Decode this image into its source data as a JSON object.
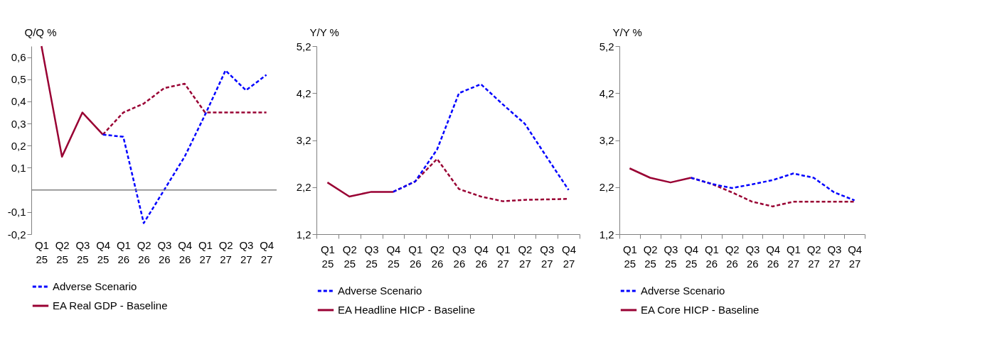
{
  "chart_data": [
    {
      "type": "line",
      "ylabel": "Q/Q %",
      "categories": [
        "Q1 25",
        "Q2 25",
        "Q3 25",
        "Q4 25",
        "Q1 26",
        "Q2 26",
        "Q3 26",
        "Q4 26",
        "Q1 27",
        "Q2 27",
        "Q3 27",
        "Q4 27"
      ],
      "ylim": [
        -0.2,
        0.65
      ],
      "yticks": [
        {
          "value": -0.2,
          "label": "-0,2"
        },
        {
          "value": -0.1,
          "label": "-0,1"
        },
        {
          "value": 0.1,
          "label": "0,1"
        },
        {
          "value": 0.2,
          "label": "0,2"
        },
        {
          "value": 0.3,
          "label": "0,3"
        },
        {
          "value": 0.4,
          "label": "0,4"
        },
        {
          "value": 0.5,
          "label": "0,5"
        },
        {
          "value": 0.6,
          "label": "0,6"
        }
      ],
      "ref_lines": [
        {
          "axis": "y",
          "value": 0,
          "color": "#808080"
        }
      ],
      "legend": "bottom",
      "series": [
        {
          "name": "Adverse Scenario",
          "color": "#0000ff",
          "line_style": "dashed",
          "values": [
            null,
            null,
            null,
            0.25,
            0.24,
            -0.15,
            0.0,
            0.15,
            0.34,
            0.54,
            0.45,
            0.52
          ]
        },
        {
          "name": "EA Real GDP - Baseline",
          "color": "#990033",
          "line_style": "solid",
          "values": [
            0.65,
            0.15,
            0.35,
            0.25,
            null,
            null,
            null,
            null,
            null,
            null,
            null,
            null
          ]
        },
        {
          "color": "#990033",
          "line_style": "dashed",
          "values": [
            null,
            null,
            null,
            0.25,
            0.35,
            0.39,
            0.46,
            0.48,
            0.35,
            0.35,
            0.35,
            0.35
          ]
        }
      ]
    },
    {
      "type": "line",
      "ylabel": "Y/Y %",
      "categories": [
        "Q1 25",
        "Q2 25",
        "Q3 25",
        "Q4 25",
        "Q1 26",
        "Q2 26",
        "Q3 26",
        "Q4 26",
        "Q1 27",
        "Q2 27",
        "Q3 27",
        "Q4 27"
      ],
      "ylim": [
        1.2,
        5.2
      ],
      "yticks": [
        {
          "value": 1.2,
          "label": "1,2"
        },
        {
          "value": 2.2,
          "label": "2,2"
        },
        {
          "value": 3.2,
          "label": "3,2"
        },
        {
          "value": 4.2,
          "label": "4,2"
        },
        {
          "value": 5.2,
          "label": "5,2"
        }
      ],
      "legend": "bottom",
      "series": [
        {
          "name": "Adverse Scenario",
          "color": "#0000ff",
          "line_style": "dashed",
          "values": [
            null,
            null,
            null,
            2.1,
            2.32,
            3.0,
            4.2,
            4.39,
            3.96,
            3.55,
            2.84,
            2.14
          ]
        },
        {
          "name": "EA Headline HICP - Baseline",
          "color": "#990033",
          "line_style": "solid",
          "values": [
            2.3,
            2.0,
            2.1,
            2.1,
            null,
            null,
            null,
            null,
            null,
            null,
            null,
            null
          ]
        },
        {
          "color": "#990033",
          "line_style": "dashed",
          "values": [
            null,
            null,
            null,
            2.1,
            2.32,
            2.8,
            2.16,
            2.0,
            1.9,
            1.93,
            1.94,
            1.95
          ]
        }
      ]
    },
    {
      "type": "line",
      "ylabel": "Y/Y %",
      "categories": [
        "Q1 25",
        "Q2 25",
        "Q3 25",
        "Q4 25",
        "Q1 26",
        "Q2 26",
        "Q3 26",
        "Q4 26",
        "Q1 27",
        "Q2 27",
        "Q3 27",
        "Q4 27"
      ],
      "ylim": [
        1.2,
        5.2
      ],
      "yticks": [
        {
          "value": 1.2,
          "label": "1,2"
        },
        {
          "value": 2.2,
          "label": "2,2"
        },
        {
          "value": 3.2,
          "label": "3,2"
        },
        {
          "value": 4.2,
          "label": "4,2"
        },
        {
          "value": 5.2,
          "label": "5,2"
        }
      ],
      "legend": "bottom",
      "series": [
        {
          "name": "Adverse Scenario",
          "color": "#0000ff",
          "line_style": "dashed",
          "values": [
            null,
            null,
            null,
            2.4,
            2.27,
            2.18,
            2.26,
            2.35,
            2.49,
            2.4,
            2.09,
            1.92
          ]
        },
        {
          "name": "EA Core HICP - Baseline",
          "color": "#990033",
          "line_style": "solid",
          "values": [
            2.6,
            2.4,
            2.3,
            2.4,
            null,
            null,
            null,
            null,
            null,
            null,
            null,
            null
          ]
        },
        {
          "color": "#990033",
          "line_style": "dashed",
          "values": [
            null,
            null,
            null,
            2.4,
            2.27,
            2.09,
            1.89,
            1.79,
            1.89,
            1.89,
            1.89,
            1.89
          ]
        }
      ]
    }
  ]
}
